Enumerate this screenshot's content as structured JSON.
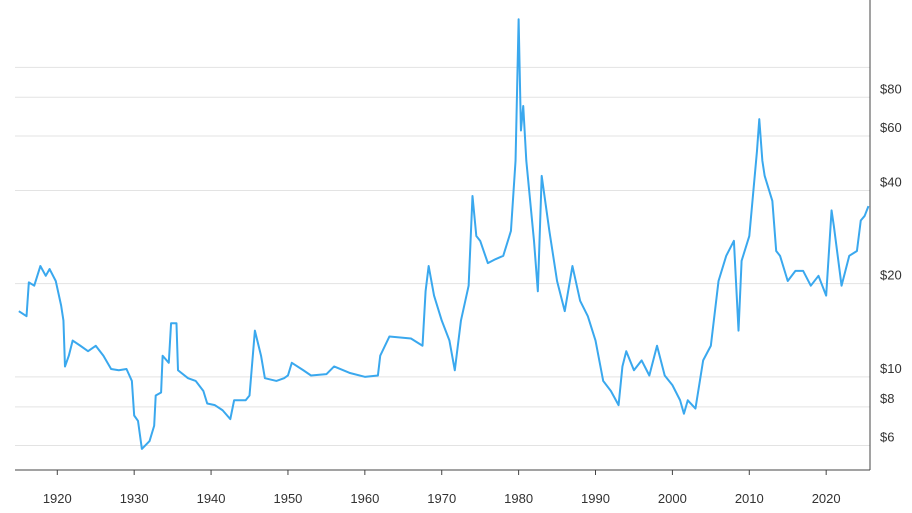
{
  "chart_data": {
    "type": "line",
    "color": "#3aa8ee",
    "log_y": true,
    "grid": true,
    "xlim": [
      1914.5,
      2025.7
    ],
    "xticks": [
      1920,
      1930,
      1940,
      1950,
      1960,
      1970,
      1980,
      1990,
      2000,
      2010,
      2020
    ],
    "ylim": [
      5,
      165
    ],
    "yticks": [
      {
        "value": 6,
        "label": "$6"
      },
      {
        "value": 8,
        "label": "$8"
      },
      {
        "value": 10,
        "label": "$10"
      },
      {
        "value": 20,
        "label": "$20"
      },
      {
        "value": 40,
        "label": "$40"
      },
      {
        "value": 60,
        "label": "$60"
      },
      {
        "value": 80,
        "label": "$80"
      },
      {
        "value": 100,
        "label": null
      }
    ],
    "x": [
      1915,
      1916,
      1916.3,
      1917,
      1917.8,
      1918.5,
      1919,
      1919.8,
      1920.5,
      1920.8,
      1921,
      1921.5,
      1922,
      1923,
      1924,
      1925,
      1926,
      1927,
      1928,
      1929,
      1929.7,
      1930,
      1930.5,
      1931,
      1932,
      1932.6,
      1932.8,
      1933.5,
      1933.7,
      1934.5,
      1934.8,
      1935.5,
      1935.7,
      1937,
      1938,
      1939,
      1939.5,
      1940.5,
      1941.5,
      1942.5,
      1943,
      1944.5,
      1945,
      1945.7,
      1946.5,
      1947,
      1948.5,
      1949.5,
      1950,
      1950.5,
      1952,
      1953,
      1955,
      1956,
      1958,
      1960,
      1961.7,
      1962,
      1963.2,
      1966,
      1967.5,
      1967.9,
      1968.3,
      1969,
      1970,
      1971,
      1971.7,
      1972.5,
      1973.5,
      1974,
      1974.5,
      1975,
      1976,
      1977,
      1978,
      1979,
      1979.6,
      1980,
      1980.3,
      1980.6,
      1981,
      1982,
      1982.5,
      1983,
      1984,
      1985,
      1986,
      1987,
      1988,
      1989,
      1990,
      1991,
      1992,
      1993,
      1993.5,
      1994,
      1995,
      1996,
      1997,
      1998,
      1999,
      2000,
      2001,
      2001.5,
      2002,
      2003,
      2004,
      2005,
      2006,
      2007,
      2008,
      2008.6,
      2009,
      2010,
      2011,
      2011.3,
      2011.7,
      2012,
      2013,
      2013.5,
      2014,
      2015,
      2016,
      2017,
      2018,
      2019,
      2020,
      2020.7,
      2021,
      2022,
      2023,
      2024,
      2024.5,
      2025,
      2025.5
    ],
    "values": [
      16.3,
      15.7,
      20.2,
      19.7,
      22.8,
      21.2,
      22.3,
      20.4,
      17.0,
      15.2,
      10.8,
      11.7,
      13.1,
      12.6,
      12.1,
      12.6,
      11.7,
      10.6,
      10.5,
      10.6,
      9.7,
      7.5,
      7.2,
      5.85,
      6.2,
      6.95,
      8.7,
      8.9,
      11.7,
      11.1,
      14.9,
      14.9,
      10.5,
      9.9,
      9.7,
      9.0,
      8.2,
      8.1,
      7.8,
      7.3,
      8.4,
      8.4,
      8.7,
      14.1,
      11.7,
      9.9,
      9.7,
      9.9,
      10.1,
      11.1,
      10.5,
      10.1,
      10.2,
      10.8,
      10.3,
      10.0,
      10.1,
      11.7,
      13.5,
      13.3,
      12.6,
      18.9,
      22.8,
      18.3,
      15.2,
      13.1,
      10.5,
      15.2,
      19.7,
      38.4,
      28.5,
      27.5,
      23.3,
      24.0,
      24.6,
      29.6,
      49.9,
      143,
      62.5,
      75.0,
      49.9,
      27.5,
      18.9,
      44.6,
      29.6,
      20.4,
      16.3,
      22.8,
      17.6,
      15.7,
      13.1,
      9.7,
      9.0,
      8.1,
      10.8,
      12.1,
      10.5,
      11.3,
      10.1,
      12.6,
      10.1,
      9.4,
      8.4,
      7.6,
      8.4,
      7.9,
      11.3,
      12.6,
      20.4,
      24.6,
      27.5,
      14.1,
      23.7,
      28.5,
      53.6,
      68.0,
      49.9,
      44.6,
      37.0,
      25.5,
      24.6,
      20.4,
      22.0,
      22.0,
      19.7,
      21.2,
      18.3,
      34.5,
      30.7,
      19.7,
      24.6,
      25.5,
      32.0,
      33.1,
      35.6
    ]
  }
}
